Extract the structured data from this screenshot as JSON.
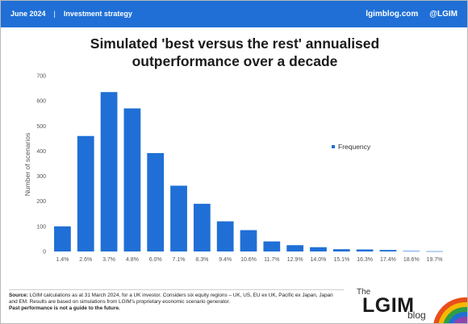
{
  "header": {
    "date": "June 2024",
    "separator": "|",
    "category": "Investment strategy",
    "site": "lgimblog.com",
    "handle": "@LGIM"
  },
  "colors": {
    "header_bg": "#1f6fd6",
    "bar": "#1f6fd6"
  },
  "footer": {
    "source_label": "Source:",
    "source_text": "LGIM calculations as at 31 March 2024, for a UK investor. Considers six equity regions – UK, US, EU ex UK, Pacific ex Japan, Japan and EM. Results are based on simulations from LGIM’s proprietary economic scenario generator.",
    "warning": "Past performance is not a guide to the future."
  },
  "logo": {
    "the": "The",
    "name": "LGIM",
    "blog": "blog"
  },
  "chart_data": {
    "type": "bar",
    "title": "Simulated 'best versus the rest' annualised outperformance over a decade",
    "title_lines": [
      "Simulated 'best versus the rest' annualised",
      "outperformance over a decade"
    ],
    "xlabel": "",
    "ylabel": "Number of scenarios",
    "ylim": [
      0,
      700
    ],
    "yticks": [
      0,
      100,
      200,
      300,
      400,
      500,
      600,
      700
    ],
    "grid": false,
    "legend_position": "right",
    "categories": [
      "1.4%",
      "2.6%",
      "3.7%",
      "4.8%",
      "6.0%",
      "7.1%",
      "8.3%",
      "9.4%",
      "10.6%",
      "11.7%",
      "12.9%",
      "14.0%",
      "15.1%",
      "16.3%",
      "17.4%",
      "18.6%",
      "19.7%"
    ],
    "series": [
      {
        "name": "Frequency",
        "values": [
          100,
          460,
          635,
          570,
          392,
          262,
          190,
          120,
          85,
          40,
          25,
          17,
          9,
          8,
          6,
          2,
          1
        ]
      }
    ]
  }
}
